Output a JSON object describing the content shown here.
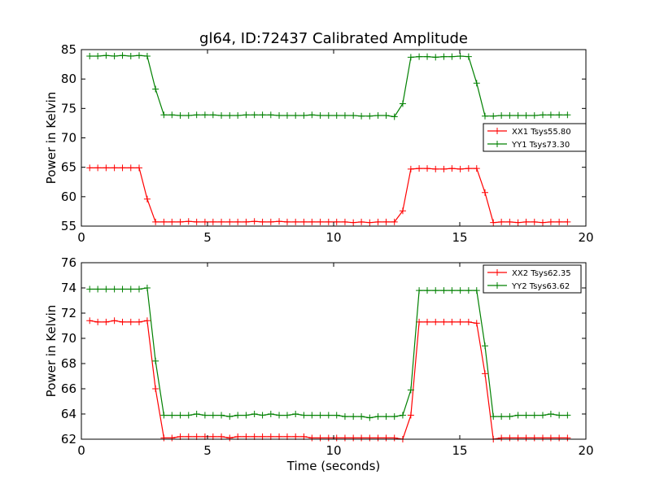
{
  "figure": {
    "title": "gl64, ID:72437 Calibrated Amplitude",
    "xlabel": "Time (seconds)"
  },
  "chart_data": [
    {
      "type": "line",
      "ylabel": "Power in Kelvin",
      "xlim": [
        0,
        20
      ],
      "ylim": [
        55,
        85
      ],
      "xticks": [
        "0",
        "5",
        "10",
        "15",
        "20"
      ],
      "yticks": [
        "55",
        "60",
        "65",
        "70",
        "75",
        "80",
        "85"
      ],
      "xtick_values": [
        0,
        5,
        10,
        15,
        20
      ],
      "ytick_values": [
        55,
        60,
        65,
        70,
        75,
        80,
        85
      ],
      "legend_position": "center-right",
      "x": [
        0.33,
        0.65,
        0.98,
        1.31,
        1.63,
        1.96,
        2.29,
        2.61,
        2.94,
        3.27,
        3.59,
        3.92,
        4.25,
        4.57,
        4.9,
        5.22,
        5.55,
        5.88,
        6.2,
        6.53,
        6.86,
        7.18,
        7.51,
        7.84,
        8.16,
        8.49,
        8.82,
        9.14,
        9.47,
        9.8,
        10.12,
        10.45,
        10.78,
        11.1,
        11.43,
        11.76,
        12.08,
        12.41,
        12.74,
        13.06,
        13.39,
        13.71,
        14.04,
        14.37,
        14.69,
        15.02,
        15.35,
        15.67,
        16.0,
        16.33,
        16.65,
        16.98,
        17.31,
        17.63,
        17.96,
        18.29,
        18.61,
        18.94,
        19.27
      ],
      "series": [
        {
          "name": "XX1 Tsys55.80",
          "color": "#ff0000",
          "values": [
            64.9,
            64.9,
            64.9,
            64.9,
            64.9,
            64.9,
            64.9,
            59.6,
            55.7,
            55.7,
            55.7,
            55.7,
            55.8,
            55.7,
            55.7,
            55.7,
            55.7,
            55.7,
            55.7,
            55.7,
            55.8,
            55.7,
            55.7,
            55.8,
            55.7,
            55.7,
            55.7,
            55.7,
            55.7,
            55.7,
            55.7,
            55.7,
            55.6,
            55.7,
            55.6,
            55.7,
            55.7,
            55.7,
            57.6,
            64.7,
            64.8,
            64.8,
            64.7,
            64.7,
            64.8,
            64.7,
            64.8,
            64.8,
            60.7,
            55.6,
            55.7,
            55.7,
            55.6,
            55.7,
            55.7,
            55.6,
            55.7,
            55.7,
            55.7
          ]
        },
        {
          "name": "YY1 Tsys73.30",
          "color": "#008000",
          "values": [
            83.9,
            83.9,
            84.0,
            83.9,
            84.0,
            83.9,
            84.0,
            83.9,
            78.3,
            73.9,
            73.9,
            73.8,
            73.8,
            73.9,
            73.9,
            73.9,
            73.8,
            73.8,
            73.8,
            73.9,
            73.9,
            73.9,
            73.9,
            73.8,
            73.8,
            73.8,
            73.8,
            73.9,
            73.8,
            73.8,
            73.8,
            73.8,
            73.8,
            73.7,
            73.7,
            73.8,
            73.8,
            73.6,
            75.8,
            83.7,
            83.8,
            83.8,
            83.7,
            83.8,
            83.8,
            83.9,
            83.8,
            79.3,
            73.7,
            73.7,
            73.8,
            73.8,
            73.8,
            73.8,
            73.8,
            73.9,
            73.9,
            73.9,
            73.9
          ]
        }
      ]
    },
    {
      "type": "line",
      "ylabel": "Power in Kelvin",
      "xlabel": "Time (seconds)",
      "xlim": [
        0,
        20
      ],
      "ylim": [
        62,
        76
      ],
      "xticks": [
        "0",
        "5",
        "10",
        "15",
        "20"
      ],
      "yticks": [
        "62",
        "64",
        "66",
        "68",
        "70",
        "72",
        "74",
        "76"
      ],
      "xtick_values": [
        0,
        5,
        10,
        15,
        20
      ],
      "ytick_values": [
        62,
        64,
        66,
        68,
        70,
        72,
        74,
        76
      ],
      "legend_position": "top-right",
      "x": [
        0.33,
        0.65,
        0.98,
        1.31,
        1.63,
        1.96,
        2.29,
        2.61,
        2.94,
        3.27,
        3.59,
        3.92,
        4.25,
        4.57,
        4.9,
        5.22,
        5.55,
        5.88,
        6.2,
        6.53,
        6.86,
        7.18,
        7.51,
        7.84,
        8.16,
        8.49,
        8.82,
        9.14,
        9.47,
        9.8,
        10.12,
        10.45,
        10.78,
        11.1,
        11.43,
        11.76,
        12.08,
        12.41,
        12.74,
        13.06,
        13.39,
        13.71,
        14.04,
        14.37,
        14.69,
        15.02,
        15.35,
        15.67,
        16.0,
        16.33,
        16.65,
        16.98,
        17.31,
        17.63,
        17.96,
        18.29,
        18.61,
        18.94,
        19.27
      ],
      "series": [
        {
          "name": "XX2 Tsys62.35",
          "color": "#ff0000",
          "values": [
            71.4,
            71.3,
            71.3,
            71.4,
            71.3,
            71.3,
            71.3,
            71.4,
            66.0,
            62.1,
            62.1,
            62.2,
            62.2,
            62.2,
            62.2,
            62.2,
            62.2,
            62.1,
            62.2,
            62.2,
            62.2,
            62.2,
            62.2,
            62.2,
            62.2,
            62.2,
            62.2,
            62.1,
            62.1,
            62.1,
            62.1,
            62.1,
            62.1,
            62.1,
            62.1,
            62.1,
            62.1,
            62.1,
            62.0,
            63.9,
            71.3,
            71.3,
            71.3,
            71.3,
            71.3,
            71.3,
            71.3,
            71.2,
            67.2,
            62.0,
            62.1,
            62.1,
            62.1,
            62.1,
            62.1,
            62.1,
            62.1,
            62.1,
            62.1
          ]
        },
        {
          "name": "YY2 Tsys63.62",
          "color": "#008000",
          "values": [
            73.9,
            73.9,
            73.9,
            73.9,
            73.9,
            73.9,
            73.9,
            74.0,
            68.2,
            63.9,
            63.9,
            63.9,
            63.9,
            64.0,
            63.9,
            63.9,
            63.9,
            63.8,
            63.9,
            63.9,
            64.0,
            63.9,
            64.0,
            63.9,
            63.9,
            64.0,
            63.9,
            63.9,
            63.9,
            63.9,
            63.9,
            63.8,
            63.8,
            63.8,
            63.7,
            63.8,
            63.8,
            63.8,
            63.9,
            65.9,
            73.8,
            73.8,
            73.8,
            73.8,
            73.8,
            73.8,
            73.8,
            73.8,
            69.4,
            63.8,
            63.8,
            63.8,
            63.9,
            63.9,
            63.9,
            63.9,
            64.0,
            63.9,
            63.9
          ]
        }
      ]
    }
  ]
}
